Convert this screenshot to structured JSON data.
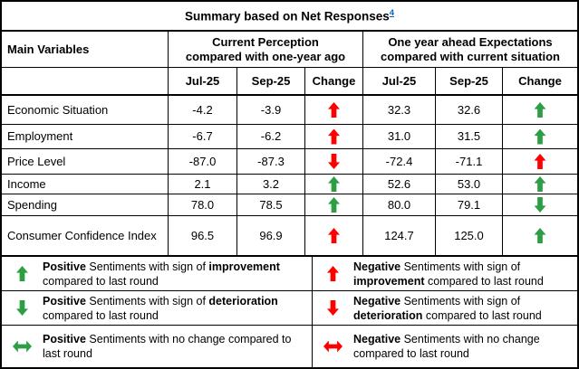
{
  "title": {
    "text": "Summary based on Net Responses",
    "footnote_ref": "4"
  },
  "colors": {
    "positive_green": "#2e9e44",
    "negative_red": "#ff0000",
    "footnote_blue": "#0563c1"
  },
  "table": {
    "main_variables_label": "Main Variables",
    "group_headers": [
      {
        "line1": "Current Perception",
        "line2": "compared with one-year ago"
      },
      {
        "line1": "One year ahead Expectations",
        "line2": "compared with current situation"
      }
    ],
    "sub_headers": {
      "cp_jul": "Jul-25",
      "cp_sep": "Sep-25",
      "cp_change": "Change",
      "ex_jul": "Jul-25",
      "ex_sep": "Sep-25",
      "ex_change": "Change"
    },
    "rows": [
      {
        "name": "Economic Situation",
        "cp_jul": "-4.2",
        "cp_sep": "-3.9",
        "cp_change": "red-up",
        "ex_jul": "32.3",
        "ex_sep": "32.6",
        "ex_change": "green-up"
      },
      {
        "name": "Employment",
        "cp_jul": "-6.7",
        "cp_sep": "-6.2",
        "cp_change": "red-up",
        "ex_jul": "31.0",
        "ex_sep": "31.5",
        "ex_change": "green-up"
      },
      {
        "name": "Price Level",
        "cp_jul": "-87.0",
        "cp_sep": "-87.3",
        "cp_change": "red-down",
        "ex_jul": "-72.4",
        "ex_sep": "-71.1",
        "ex_change": "red-up"
      },
      {
        "name": "Income",
        "cp_jul": "2.1",
        "cp_sep": "3.2",
        "cp_change": "green-up",
        "ex_jul": "52.6",
        "ex_sep": "53.0",
        "ex_change": "green-up"
      },
      {
        "name": "Spending",
        "cp_jul": "78.0",
        "cp_sep": "78.5",
        "cp_change": "green-up",
        "ex_jul": "80.0",
        "ex_sep": "79.1",
        "ex_change": "green-down"
      },
      {
        "name": "Consumer Confidence Index",
        "cp_jul": "96.5",
        "cp_sep": "96.9",
        "cp_change": "red-up",
        "ex_jul": "124.7",
        "ex_sep": "125.0",
        "ex_change": "green-up"
      }
    ]
  },
  "legend": {
    "rows": [
      {
        "left": {
          "arrow": "green-up",
          "b1": "Positive",
          "t1": " Sentiments with sign of ",
          "b2": "improvement",
          "t2": " compared to last round"
        },
        "right": {
          "arrow": "red-up",
          "b1": "Negative",
          "t1": " Sentiments with sign of ",
          "b2": "improvement",
          "t2": " compared to last round"
        }
      },
      {
        "left": {
          "arrow": "green-down",
          "b1": "Positive",
          "t1": " Sentiments with sign of ",
          "b2": "deterioration",
          "t2": " compared to last round"
        },
        "right": {
          "arrow": "red-down",
          "b1": "Negative",
          "t1": " Sentiments with sign of ",
          "b2": "deterioration",
          "t2": " compared to last round"
        }
      },
      {
        "left": {
          "arrow": "green-lr",
          "b1": "Positive",
          "t1": " Sentiments with no change compared to last round",
          "b2": "",
          "t2": ""
        },
        "right": {
          "arrow": "red-lr",
          "b1": "Negative",
          "t1": " Sentiments with no change compared to last round",
          "b2": "",
          "t2": ""
        }
      }
    ]
  }
}
